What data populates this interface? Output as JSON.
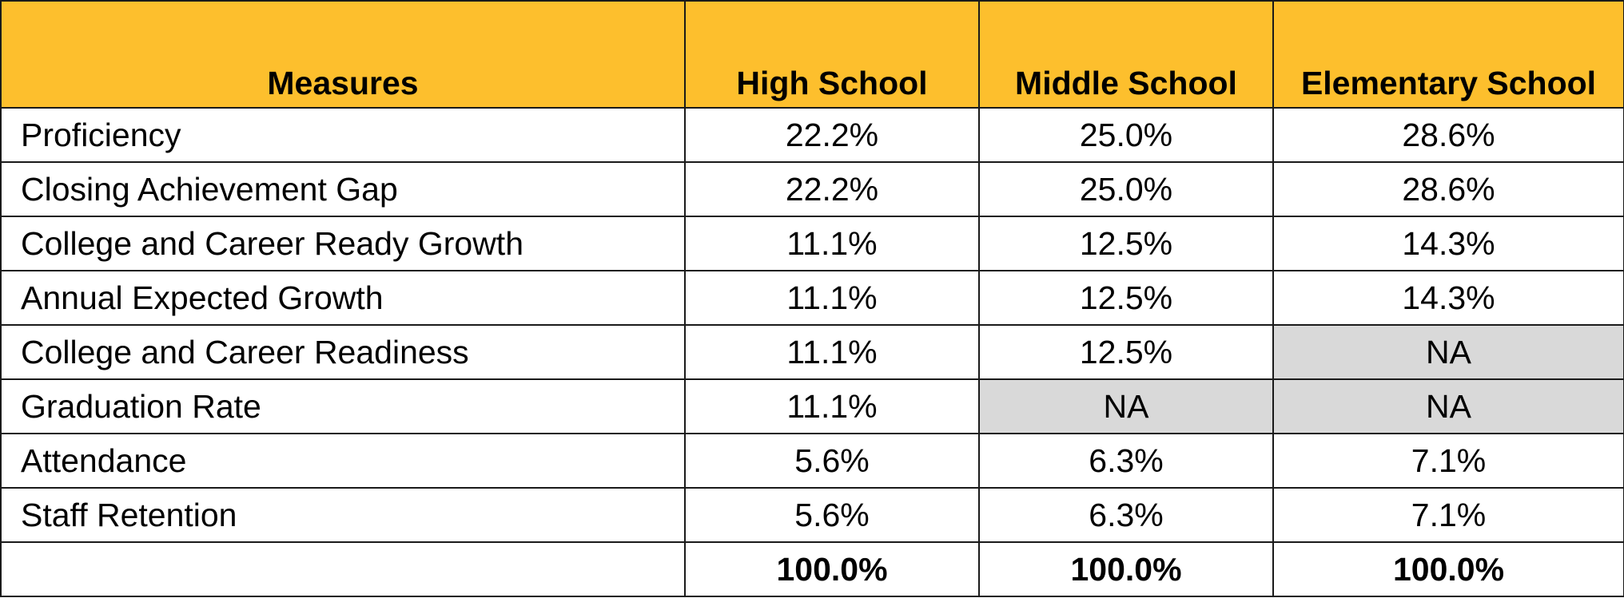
{
  "table": {
    "headers": [
      "Measures",
      "High School",
      "Middle School",
      "Elementary School"
    ],
    "rows": [
      {
        "measure": "Proficiency",
        "high": "22.2%",
        "middle": "25.0%",
        "elementary": "28.6%"
      },
      {
        "measure": "Closing Achievement Gap",
        "high": "22.2%",
        "middle": "25.0%",
        "elementary": "28.6%"
      },
      {
        "measure": "College and Career Ready Growth",
        "high": "11.1%",
        "middle": "12.5%",
        "elementary": "14.3%"
      },
      {
        "measure": "Annual Expected Growth",
        "high": "11.1%",
        "middle": "12.5%",
        "elementary": "14.3%"
      },
      {
        "measure": "College and Career Readiness",
        "high": "11.1%",
        "middle": "12.5%",
        "elementary": "NA"
      },
      {
        "measure": "Graduation Rate",
        "high": "11.1%",
        "middle": "NA",
        "elementary": "NA"
      },
      {
        "measure": "Attendance",
        "high": "5.6%",
        "middle": "6.3%",
        "elementary": "7.1%"
      },
      {
        "measure": "Staff Retention",
        "high": "5.6%",
        "middle": "6.3%",
        "elementary": "7.1%"
      }
    ],
    "total": {
      "measure": "",
      "high": "100.0%",
      "middle": "100.0%",
      "elementary": "100.0%"
    }
  },
  "colors": {
    "header_fill": "#FDBF2D",
    "na_fill": "#D9D9D9",
    "border": "#1A1A1A"
  }
}
